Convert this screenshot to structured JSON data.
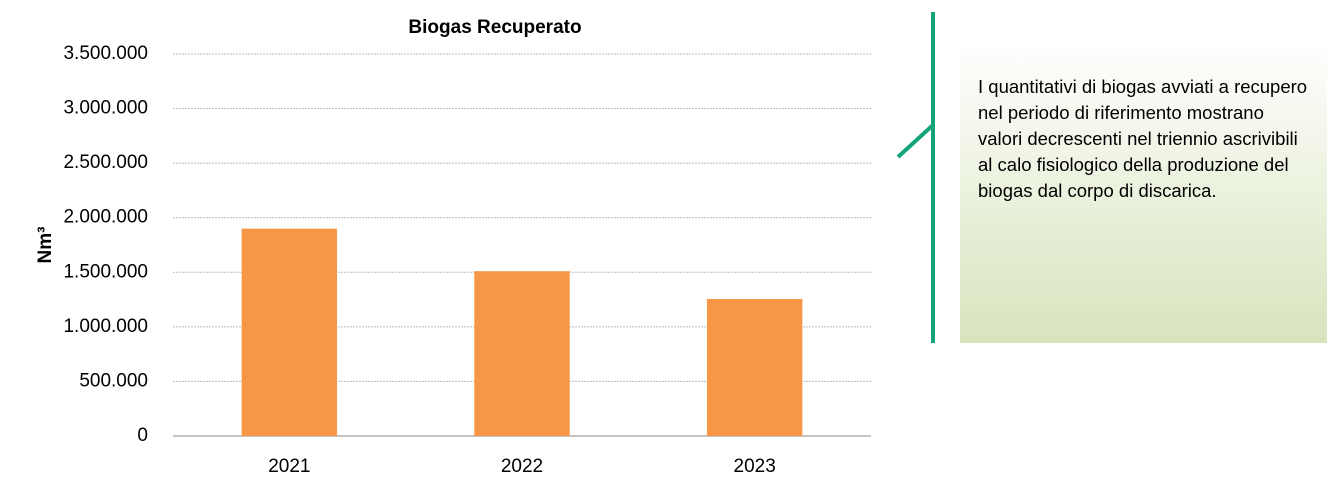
{
  "chart_data": {
    "type": "bar",
    "title": "Biogas Recuperato",
    "ylabel": "Nm³",
    "categories": [
      "2021",
      "2022",
      "2023"
    ],
    "values": [
      1900000,
      1510000,
      1255000
    ],
    "color": "#f79646",
    "ylim": [
      0,
      3500000
    ],
    "yticks": [
      0,
      {
        "value": 500000,
        "label": "500.000"
      },
      {
        "value": 1000000,
        "label": "1.000.000"
      },
      {
        "value": 1500000,
        "label": "1.500.000"
      },
      {
        "value": 2000000,
        "label": "2.000.000"
      },
      {
        "value": 2500000,
        "label": "2.500.000"
      },
      {
        "value": 3000000,
        "label": "3.000.000"
      },
      {
        "value": 3500000,
        "label": "3.500.000"
      }
    ],
    "grid": true
  },
  "annotation": "I quantitativi di biogas avviati a recupero nel periodo di riferimento mostrano valori decrescenti nel triennio ascrivibili al calo fisiologico della produzione del biogas dal corpo di discarica."
}
